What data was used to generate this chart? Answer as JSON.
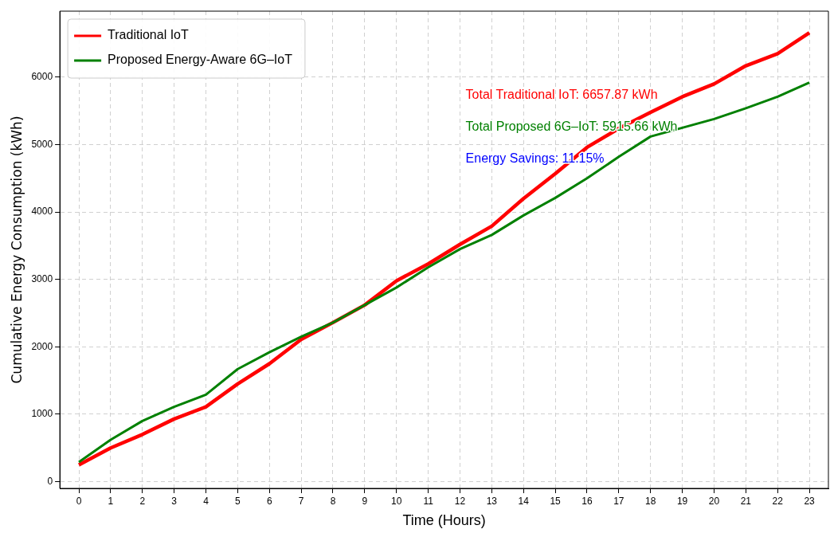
{
  "chart_data": {
    "type": "line",
    "xlabel": "Time (Hours)",
    "ylabel": "Cumulative Energy Consumption (kWh)",
    "x": [
      0,
      1,
      2,
      3,
      4,
      5,
      6,
      7,
      8,
      9,
      10,
      11,
      12,
      13,
      14,
      15,
      16,
      17,
      18,
      19,
      20,
      21,
      22,
      23
    ],
    "series": [
      {
        "name": "Traditional IoT",
        "color": "#ff0000",
        "values": [
          250,
          500,
          700,
          930,
          1110,
          1450,
          1750,
          2110,
          2360,
          2620,
          2980,
          3230,
          3520,
          3790,
          4200,
          4570,
          4960,
          5240,
          5480,
          5710,
          5900,
          6170,
          6350,
          6660
        ]
      },
      {
        "name": "Proposed Energy-Aware 6G–IoT",
        "color": "#008000",
        "values": [
          290,
          620,
          900,
          1110,
          1290,
          1670,
          1920,
          2150,
          2360,
          2620,
          2880,
          3180,
          3450,
          3660,
          3950,
          4210,
          4500,
          4820,
          5120,
          5250,
          5380,
          5540,
          5710,
          5920
        ]
      }
    ],
    "annotations": [
      "Total Traditional IoT: 6657.87 kWh",
      "Total Proposed 6G–IoT: 5915.66 kWh",
      "Energy Savings: 11.15%"
    ],
    "xlim": [
      -0.6,
      23.6
    ],
    "ylim": [
      -100,
      6980
    ],
    "xticks": [
      0,
      1,
      2,
      3,
      4,
      5,
      6,
      7,
      8,
      9,
      10,
      11,
      12,
      13,
      14,
      15,
      16,
      17,
      18,
      19,
      20,
      21,
      22,
      23
    ],
    "yticks": [
      0,
      1000,
      2000,
      3000,
      4000,
      5000,
      6000
    ],
    "grid": true,
    "legend": "top left",
    "marker": "none",
    "line_style": "solid"
  }
}
